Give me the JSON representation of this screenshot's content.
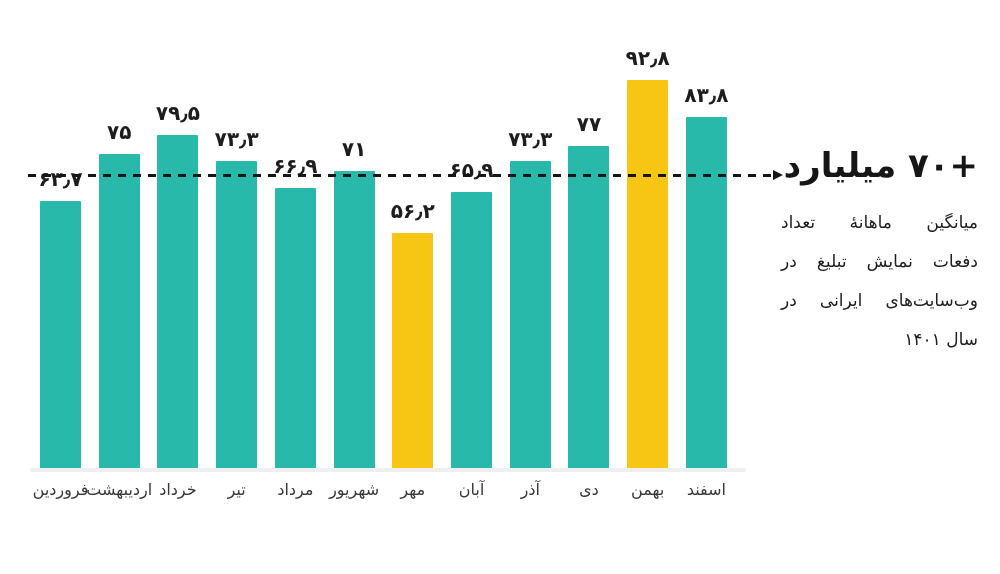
{
  "chart_data": {
    "type": "bar",
    "categories": [
      "فروردین",
      "اردیبهشت",
      "خرداد",
      "تیر",
      "مرداد",
      "شهریور",
      "مهر",
      "آبان",
      "آذر",
      "دی",
      "بهمن",
      "اسفند"
    ],
    "values": [
      63.7,
      75,
      79.5,
      73.3,
      66.9,
      71,
      56.2,
      65.9,
      73.3,
      77,
      92.8,
      83.8
    ],
    "value_labels": [
      "۶۳٫۷",
      "۷۵",
      "۷۹٫۵",
      "۷۳٫۳",
      "۶۶٫۹",
      "۷۱",
      "۵۶٫۲",
      "۶۵٫۹",
      "۷۳٫۳",
      "۷۷",
      "۹۲٫۸",
      "۸۳٫۸"
    ],
    "highlight_indexes": [
      6,
      10
    ],
    "colors": {
      "bar": "#29B9AB",
      "highlight": "#F7C513",
      "value_text": "#1D1D1D",
      "month_text": "#383838",
      "line": "#161616"
    },
    "ylim": [
      0,
      100
    ],
    "grid": false,
    "legend": false,
    "reference_line": {
      "value": 70,
      "style": "dashed",
      "arrow": "right"
    },
    "annotation": {
      "headline": "+۷۰ میلیارد",
      "lines": [
        "میانگین ماهانهٔ تعداد",
        "دفعات نمایش تبلیغ در",
        "وب‌سایت‌های ایرانی در",
        "سال ۱۴۰۱"
      ]
    }
  }
}
